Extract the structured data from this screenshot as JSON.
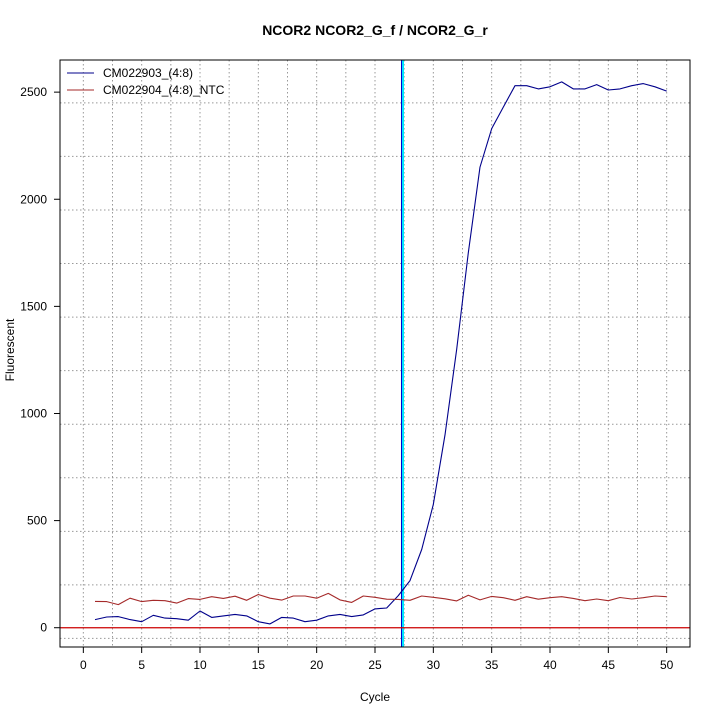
{
  "chart_data": {
    "type": "line",
    "title": "NCOR2  NCOR2_G_f / NCOR2_G_r",
    "xlabel": "Cycle",
    "ylabel": "Fluorescent",
    "xlim": [
      -2,
      52
    ],
    "ylim": [
      -90,
      2650
    ],
    "x_ticks": [
      0,
      5,
      10,
      15,
      20,
      25,
      30,
      35,
      40,
      45,
      50
    ],
    "y_ticks": [
      0,
      500,
      1000,
      1500,
      2000,
      2500
    ],
    "grid": true,
    "grid_style": "dotted",
    "legend_position": "top-left",
    "threshold_cycle": 27.4,
    "threshold_color": "#00e5ff",
    "baseline_value": 0,
    "baseline_color": "#cc0000",
    "series": [
      {
        "name": "CM022903_(4:8)",
        "color": "#00008b",
        "x": [
          1,
          2,
          3,
          4,
          5,
          6,
          7,
          8,
          9,
          10,
          11,
          12,
          13,
          14,
          15,
          16,
          17,
          18,
          19,
          20,
          21,
          22,
          23,
          24,
          25,
          26,
          27,
          28,
          29,
          30,
          31,
          32,
          33,
          34,
          35,
          36,
          37,
          38,
          39,
          40,
          41,
          42,
          43,
          44,
          45,
          46,
          47,
          48,
          49,
          50
        ],
        "values": [
          38,
          50,
          52,
          38,
          28,
          58,
          45,
          42,
          35,
          78,
          48,
          55,
          62,
          55,
          28,
          18,
          48,
          45,
          28,
          35,
          55,
          62,
          52,
          60,
          88,
          92,
          150,
          220,
          365,
          575,
          900,
          1300,
          1750,
          2150,
          2330,
          2430,
          2530,
          2530,
          2515,
          2525,
          2548,
          2515,
          2515,
          2535,
          2510,
          2515,
          2530,
          2540,
          2525,
          2505
        ]
      },
      {
        "name": "CM022904_(4:8)_NTC",
        "color": "#a52a2a",
        "x": [
          1,
          2,
          3,
          4,
          5,
          6,
          7,
          8,
          9,
          10,
          11,
          12,
          13,
          14,
          15,
          16,
          17,
          18,
          19,
          20,
          21,
          22,
          23,
          24,
          25,
          26,
          27,
          28,
          29,
          30,
          31,
          32,
          33,
          34,
          35,
          36,
          37,
          38,
          39,
          40,
          41,
          42,
          43,
          44,
          45,
          46,
          47,
          48,
          49,
          50
        ],
        "values": [
          123,
          122,
          108,
          138,
          122,
          128,
          126,
          115,
          136,
          132,
          145,
          137,
          147,
          128,
          155,
          138,
          129,
          148,
          148,
          138,
          160,
          130,
          118,
          148,
          142,
          133,
          132,
          128,
          148,
          142,
          135,
          125,
          152,
          130,
          146,
          140,
          128,
          145,
          133,
          140,
          145,
          137,
          126,
          134,
          126,
          141,
          134,
          140,
          148,
          145
        ]
      }
    ]
  }
}
